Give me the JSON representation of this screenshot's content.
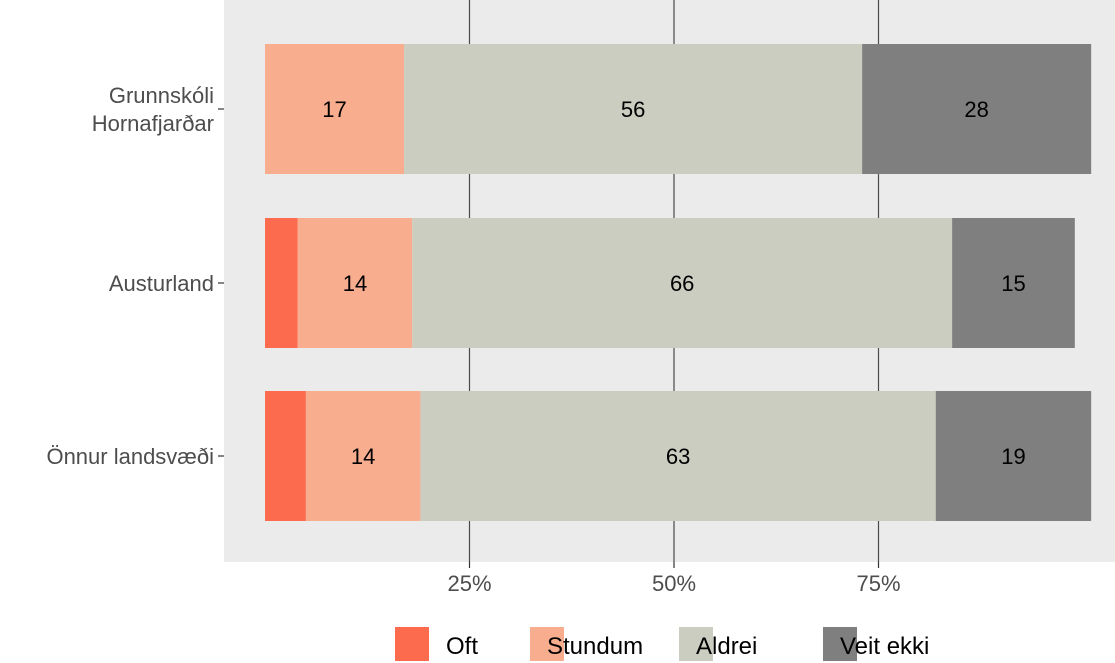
{
  "chart_data": {
    "type": "bar",
    "orientation": "horizontal",
    "stacked": true,
    "categories": [
      "Grunnskóli\nHornafjarðar",
      "Austurland",
      "Önnur landsvæði"
    ],
    "series": [
      {
        "name": "Oft",
        "color": "#fc6b4e",
        "values": [
          0,
          4,
          5
        ]
      },
      {
        "name": "Stundum",
        "color": "#f9ad8f",
        "values": [
          17,
          14,
          14
        ]
      },
      {
        "name": "Aldrei",
        "color": "#cccdc1",
        "values": [
          56,
          66,
          63
        ]
      },
      {
        "name": "Veit ekki",
        "color": "#7f7f7f",
        "values": [
          28,
          15,
          19
        ]
      }
    ],
    "bar_labels": [
      [
        null,
        "17",
        "56",
        "28"
      ],
      [
        null,
        "14",
        "66",
        "15"
      ],
      [
        null,
        "14",
        "63",
        "19"
      ]
    ],
    "x_ticks": [
      "25%",
      "50%",
      "75%"
    ],
    "x_tick_values": [
      25,
      50,
      75
    ],
    "xlim": [
      0,
      100
    ],
    "xlabel": "",
    "ylabel": "",
    "title": "",
    "grid": true,
    "legend_position": "bottom"
  }
}
